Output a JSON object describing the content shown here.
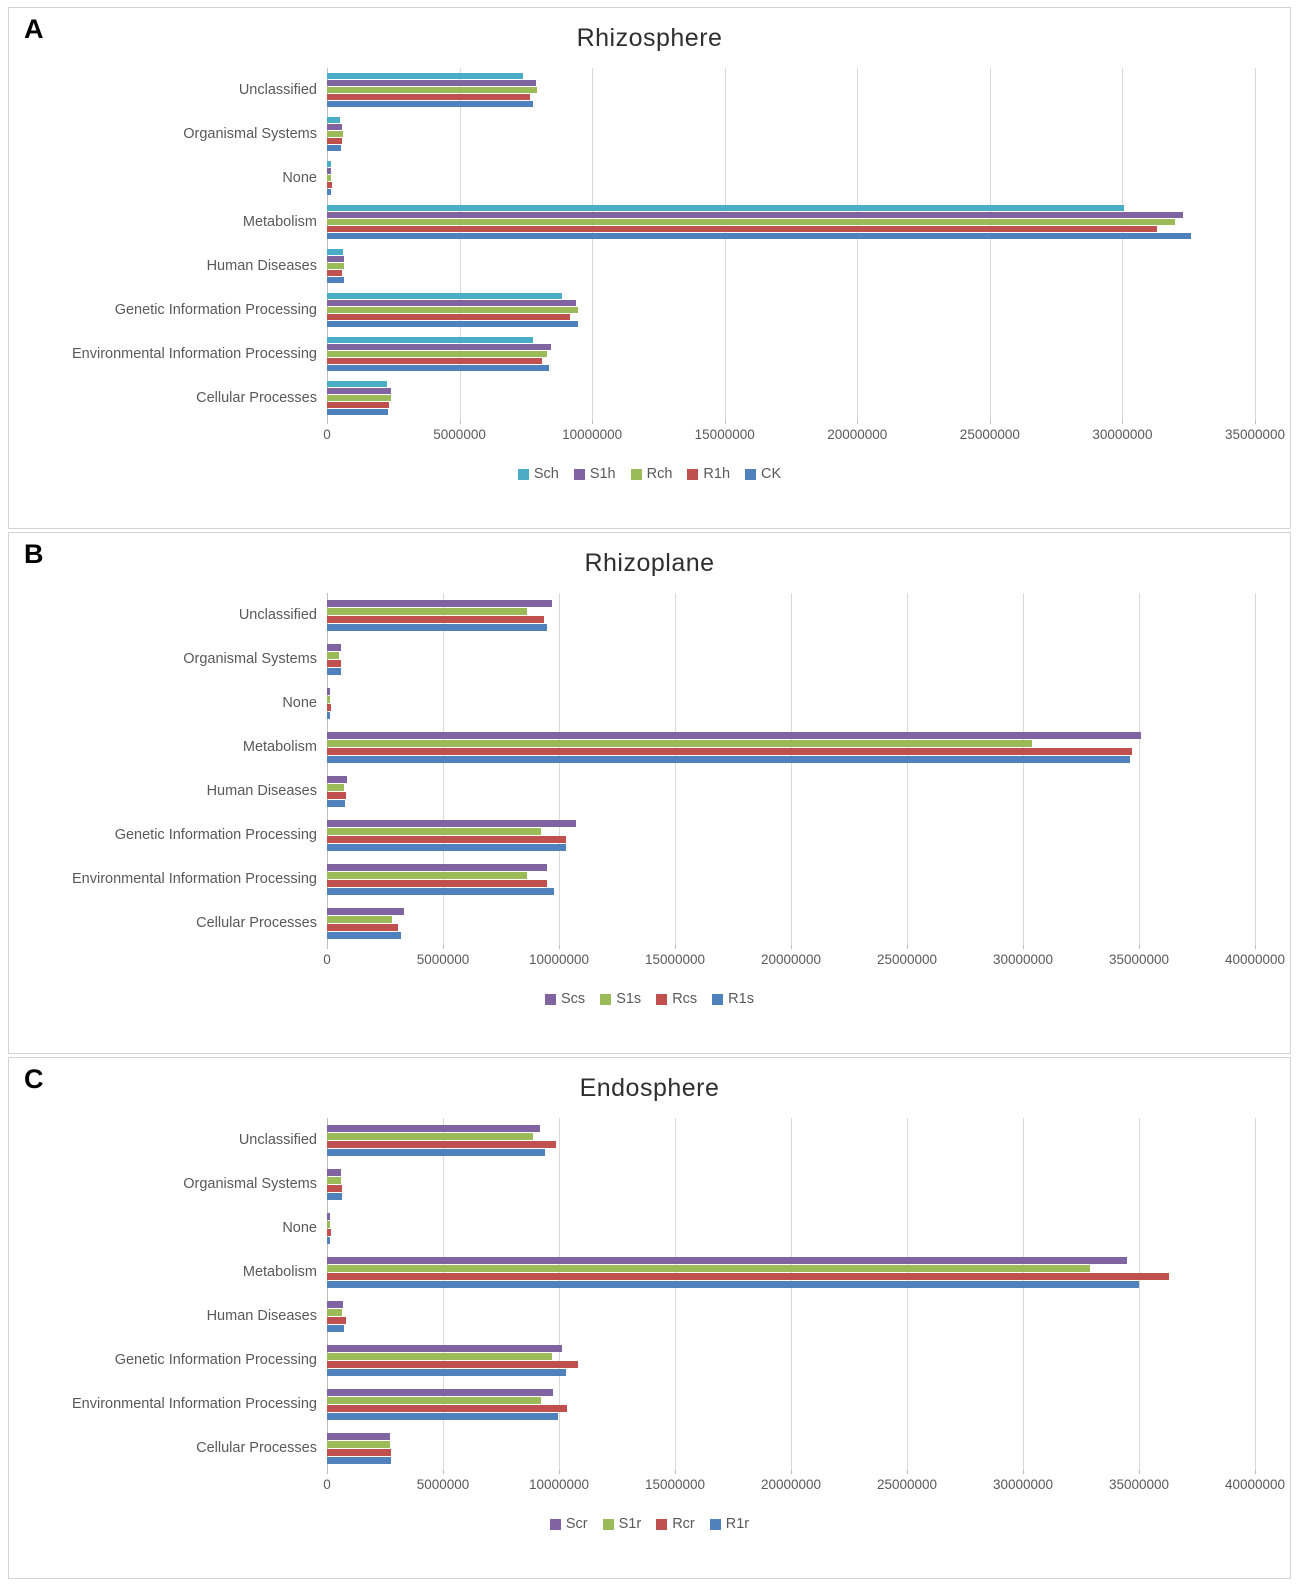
{
  "chart_data": [
    {
      "letter": "A",
      "title": "Rhizosphere",
      "type": "bar",
      "orientation": "horizontal",
      "grid": true,
      "legend_position": "bottom",
      "categories": [
        "Unclassified",
        "Organismal Systems",
        "None",
        "Metabolism",
        "Human Diseases",
        "Genetic Information Processing",
        "Environmental Information Processing",
        "Cellular Processes"
      ],
      "x_max": 35000000,
      "x_ticks": [
        "0",
        "5000000",
        "10000000",
        "15000000",
        "20000000",
        "25000000",
        "30000000",
        "35000000"
      ],
      "series": [
        {
          "name": "Sch",
          "color": "#4BACC6",
          "values": [
            7400000,
            500000,
            140000,
            30050000,
            620000,
            8870000,
            7770000,
            2250000
          ]
        },
        {
          "name": "S1h",
          "color": "#8064A2",
          "values": [
            7900000,
            570000,
            160000,
            32300000,
            640000,
            9410000,
            8460000,
            2420000
          ]
        },
        {
          "name": "Rch",
          "color": "#9BBB59",
          "values": [
            7920000,
            590000,
            150000,
            32000000,
            630000,
            9450000,
            8290000,
            2410000
          ]
        },
        {
          "name": "R1h",
          "color": "#C0504D",
          "values": [
            7650000,
            550000,
            190000,
            31300000,
            570000,
            9180000,
            8110000,
            2330000
          ]
        },
        {
          "name": "CK",
          "color": "#4F81BD",
          "values": [
            7760000,
            530000,
            140000,
            32600000,
            640000,
            9470000,
            8360000,
            2290000
          ]
        }
      ]
    },
    {
      "letter": "B",
      "title": "Rhizoplane",
      "type": "bar",
      "orientation": "horizontal",
      "grid": true,
      "legend_position": "bottom",
      "categories": [
        "Unclassified",
        "Organismal Systems",
        "None",
        "Metabolism",
        "Human Diseases",
        "Genetic Information Processing",
        "Environmental Information Processing",
        "Cellular Processes"
      ],
      "x_max": 40000000,
      "x_ticks": [
        "0",
        "5000000",
        "10000000",
        "15000000",
        "20000000",
        "25000000",
        "30000000",
        "35000000",
        "40000000"
      ],
      "series": [
        {
          "name": "Scs",
          "color": "#8064A2",
          "values": [
            9700000,
            610000,
            140000,
            35100000,
            860000,
            10750000,
            9500000,
            3340000
          ]
        },
        {
          "name": "S1s",
          "color": "#9BBB59",
          "values": [
            8600000,
            500000,
            140000,
            30400000,
            720000,
            9220000,
            8600000,
            2800000
          ]
        },
        {
          "name": "Rcs",
          "color": "#C0504D",
          "values": [
            9350000,
            620000,
            170000,
            34700000,
            810000,
            10320000,
            9470000,
            3080000
          ]
        },
        {
          "name": "R1s",
          "color": "#4F81BD",
          "values": [
            9500000,
            610000,
            140000,
            34600000,
            780000,
            10320000,
            9770000,
            3200000
          ]
        }
      ]
    },
    {
      "letter": "C",
      "title": "Endosphere",
      "type": "bar",
      "orientation": "horizontal",
      "grid": true,
      "legend_position": "bottom",
      "categories": [
        "Unclassified",
        "Organismal Systems",
        "None",
        "Metabolism",
        "Human Diseases",
        "Genetic Information Processing",
        "Environmental Information Processing",
        "Cellular Processes"
      ],
      "x_max": 40000000,
      "x_ticks": [
        "0",
        "5000000",
        "10000000",
        "15000000",
        "20000000",
        "25000000",
        "30000000",
        "35000000",
        "40000000"
      ],
      "series": [
        {
          "name": "Scr",
          "color": "#8064A2",
          "values": [
            9180000,
            590000,
            130000,
            34500000,
            680000,
            10140000,
            9730000,
            2720000
          ]
        },
        {
          "name": "S1r",
          "color": "#9BBB59",
          "values": [
            8860000,
            620000,
            140000,
            32900000,
            630000,
            9710000,
            9220000,
            2720000
          ]
        },
        {
          "name": "Rcr",
          "color": "#C0504D",
          "values": [
            9860000,
            650000,
            170000,
            36300000,
            810000,
            10840000,
            10350000,
            2770000
          ]
        },
        {
          "name": "R1r",
          "color": "#4F81BD",
          "values": [
            9380000,
            660000,
            140000,
            35000000,
            720000,
            10320000,
            9940000,
            2770000
          ]
        }
      ]
    }
  ],
  "style": {
    "gridline_color": "#d9d9d9",
    "axis_line_color": "#bfbfbf",
    "label_text_color": "#595959",
    "title_text_color": "#2f2f2f"
  }
}
